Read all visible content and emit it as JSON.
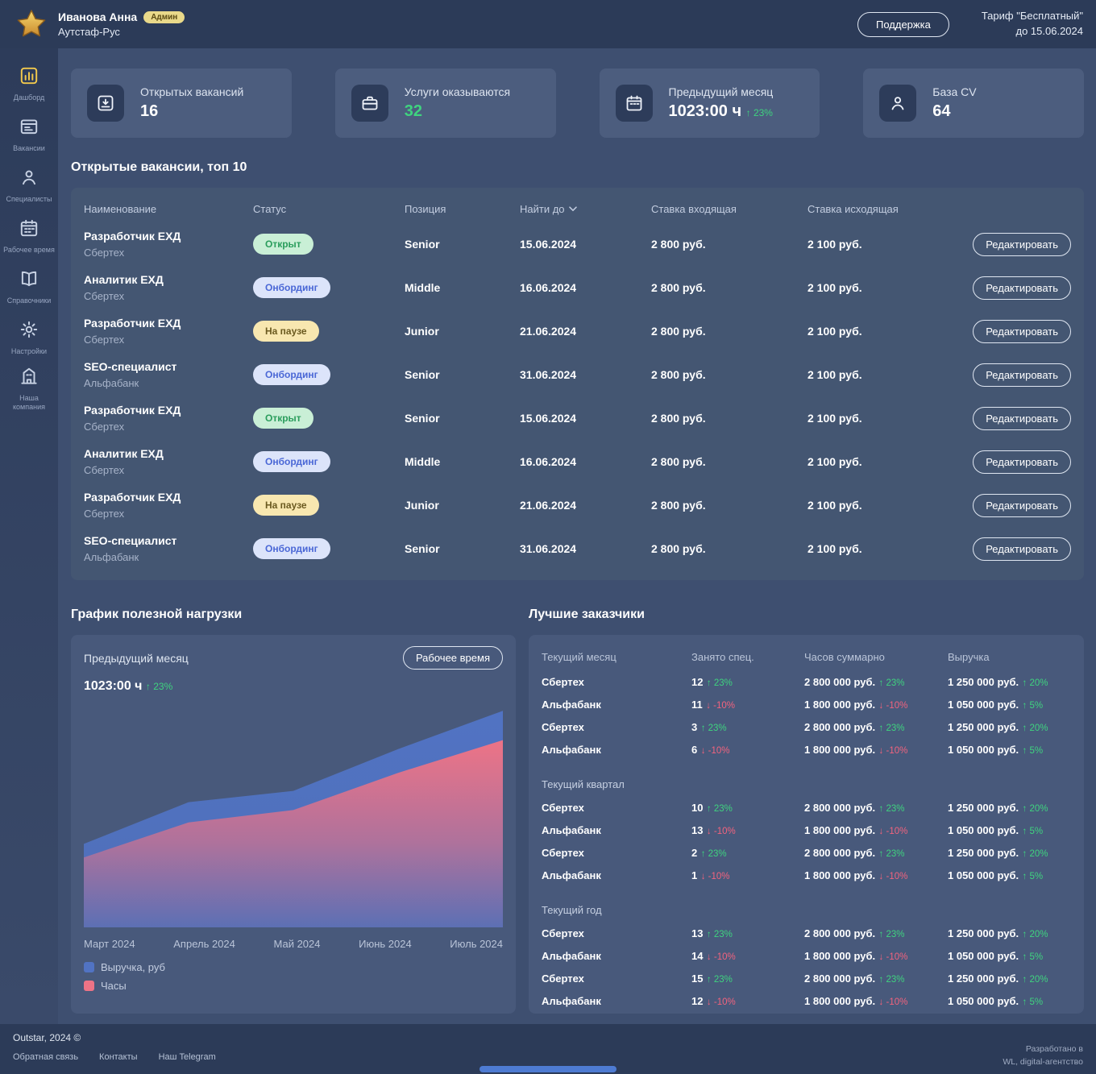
{
  "header": {
    "user_name": "Иванова Анна",
    "user_badge": "Админ",
    "company": "Аутстаф-Рус",
    "support_button": "Поддержка",
    "tariff_line1": "Тариф \"Бесплатный\"",
    "tariff_line2": "до 15.06.2024"
  },
  "sidebar": {
    "items": [
      {
        "id": "dashboard",
        "label": "Дашборд",
        "icon": "dashboard-icon",
        "active": true
      },
      {
        "id": "vacancies",
        "label": "Вакансии",
        "icon": "vacancies-icon",
        "active": false
      },
      {
        "id": "specialists",
        "label": "Специалисты",
        "icon": "specialists-icon",
        "active": false
      },
      {
        "id": "worktime",
        "label": "Рабочее время",
        "icon": "worktime-icon",
        "active": false
      },
      {
        "id": "references",
        "label": "Справочники",
        "icon": "references-icon",
        "active": false
      },
      {
        "id": "settings",
        "label": "Настройки",
        "icon": "settings-icon",
        "active": false
      },
      {
        "id": "company",
        "label": "Наша компания",
        "icon": "company-icon",
        "active": false
      }
    ]
  },
  "stats": [
    {
      "id": "open-vacancies",
      "icon": "inbox-download-icon",
      "label": "Открытых вакансий",
      "value": "16",
      "value_class": "white",
      "delta": ""
    },
    {
      "id": "services",
      "icon": "services-icon",
      "label": "Услуги оказываются",
      "value": "32",
      "value_class": "green",
      "delta": ""
    },
    {
      "id": "prev-month",
      "icon": "calendar-icon",
      "label": "Предыдущий месяц",
      "value": "1023:00 ч",
      "value_class": "white",
      "delta": "↑ 23%"
    },
    {
      "id": "cv-base",
      "icon": "person-icon",
      "label": "База CV",
      "value": "64",
      "value_class": "white",
      "delta": ""
    }
  ],
  "vacancies": {
    "title": "Открытые вакансии, топ 10",
    "columns": {
      "name": "Наименование",
      "status": "Статус",
      "position": "Позиция",
      "deadline": "Найти до",
      "rate_in": "Ставка входящая",
      "rate_out": "Ставка исходящая"
    },
    "edit_label": "Редактировать",
    "rows": [
      {
        "name": "Разработчик ЕХД",
        "company": "Сбертех",
        "status": "Открыт",
        "status_type": "open",
        "position": "Senior",
        "deadline": "15.06.2024",
        "rate_in": "2 800 руб.",
        "rate_out": "2 100 руб."
      },
      {
        "name": "Аналитик ЕХД",
        "company": "Сбертех",
        "status": "Онбординг",
        "status_type": "onboarding",
        "position": "Middle",
        "deadline": "16.06.2024",
        "rate_in": "2 800 руб.",
        "rate_out": "2 100 руб."
      },
      {
        "name": "Разработчик ЕХД",
        "company": "Сбертех",
        "status": "На паузе",
        "status_type": "paused",
        "position": "Junior",
        "deadline": "21.06.2024",
        "rate_in": "2 800 руб.",
        "rate_out": "2 100 руб."
      },
      {
        "name": "SEO-специалист",
        "company": "Альфабанк",
        "status": "Онбординг",
        "status_type": "onboarding",
        "position": "Senior",
        "deadline": "31.06.2024",
        "rate_in": "2 800 руб.",
        "rate_out": "2 100 руб."
      },
      {
        "name": "Разработчик ЕХД",
        "company": "Сбертех",
        "status": "Открыт",
        "status_type": "open",
        "position": "Senior",
        "deadline": "15.06.2024",
        "rate_in": "2 800 руб.",
        "rate_out": "2 100 руб."
      },
      {
        "name": "Аналитик ЕХД",
        "company": "Сбертех",
        "status": "Онбординг",
        "status_type": "onboarding",
        "position": "Middle",
        "deadline": "16.06.2024",
        "rate_in": "2 800 руб.",
        "rate_out": "2 100 руб."
      },
      {
        "name": "Разработчик ЕХД",
        "company": "Сбертех",
        "status": "На паузе",
        "status_type": "paused",
        "position": "Junior",
        "deadline": "21.06.2024",
        "rate_in": "2 800 руб.",
        "rate_out": "2 100 руб."
      },
      {
        "name": "SEO-специалист",
        "company": "Альфабанк",
        "status": "Онбординг",
        "status_type": "onboarding",
        "position": "Senior",
        "deadline": "31.06.2024",
        "rate_in": "2 800 руб.",
        "rate_out": "2 100 руб."
      }
    ]
  },
  "load_chart": {
    "section_title": "График полезной нагрузки",
    "period_label": "Предыдущий месяц",
    "button": "Рабочее время",
    "value": "1023:00 ч",
    "delta": "↑ 23%"
  },
  "chart_data": {
    "type": "area",
    "title": "График полезной нагрузки",
    "x": [
      "Март 2024",
      "Апрель 2024",
      "Май 2024",
      "Июнь 2024",
      "Июль 2024"
    ],
    "series": [
      {
        "name": "Выручка, руб",
        "color": "#5173c3",
        "values": [
          370,
          555,
          605,
          790,
          960
        ]
      },
      {
        "name": "Часы",
        "color": "#ed7386",
        "values": [
          310,
          465,
          520,
          685,
          830
        ]
      }
    ],
    "ylim": [
      0,
      1000
    ],
    "grid": false,
    "stacked_look": true,
    "legend_position": "bottom-left"
  },
  "top_clients": {
    "title": "Лучшие заказчики",
    "columns": [
      "Занято спец.",
      "Часов суммарно",
      "Выручка"
    ],
    "sections": [
      {
        "label": "Текущий месяц",
        "rows": [
          {
            "client": "Сбертех",
            "spec": "12",
            "spec_delta": "↑ 23%",
            "spec_dir": "up",
            "hours": "2 800 000 руб.",
            "hours_delta": "↑ 23%",
            "hours_dir": "up",
            "revenue": "1 250 000 руб.",
            "revenue_delta": "↑ 20%",
            "revenue_dir": "up"
          },
          {
            "client": "Альфабанк",
            "spec": "11",
            "spec_delta": "↓ -10%",
            "spec_dir": "down",
            "hours": "1 800 000 руб.",
            "hours_delta": "↓ -10%",
            "hours_dir": "down",
            "revenue": "1 050 000 руб.",
            "revenue_delta": "↑ 5%",
            "revenue_dir": "up"
          },
          {
            "client": "Сбертех",
            "spec": "3",
            "spec_delta": "↑ 23%",
            "spec_dir": "up",
            "hours": "2 800 000 руб.",
            "hours_delta": "↑ 23%",
            "hours_dir": "up",
            "revenue": "1 250 000 руб.",
            "revenue_delta": "↑ 20%",
            "revenue_dir": "up"
          },
          {
            "client": "Альфабанк",
            "spec": "6",
            "spec_delta": "↓ -10%",
            "spec_dir": "down",
            "hours": "1 800 000 руб.",
            "hours_delta": "↓ -10%",
            "hours_dir": "down",
            "revenue": "1 050 000 руб.",
            "revenue_delta": "↑ 5%",
            "revenue_dir": "up"
          }
        ]
      },
      {
        "label": "Текущий квартал",
        "rows": [
          {
            "client": "Сбертех",
            "spec": "10",
            "spec_delta": "↑ 23%",
            "spec_dir": "up",
            "hours": "2 800 000 руб.",
            "hours_delta": "↑ 23%",
            "hours_dir": "up",
            "revenue": "1 250 000 руб.",
            "revenue_delta": "↑ 20%",
            "revenue_dir": "up"
          },
          {
            "client": "Альфабанк",
            "spec": "13",
            "spec_delta": "↓ -10%",
            "spec_dir": "down",
            "hours": "1 800 000 руб.",
            "hours_delta": "↓ -10%",
            "hours_dir": "down",
            "revenue": "1 050 000 руб.",
            "revenue_delta": "↑ 5%",
            "revenue_dir": "up"
          },
          {
            "client": "Сбертех",
            "spec": "2",
            "spec_delta": "↑ 23%",
            "spec_dir": "up",
            "hours": "2 800 000 руб.",
            "hours_delta": "↑ 23%",
            "hours_dir": "up",
            "revenue": "1 250 000 руб.",
            "revenue_delta": "↑ 20%",
            "revenue_dir": "up"
          },
          {
            "client": "Альфабанк",
            "spec": "1",
            "spec_delta": "↓ -10%",
            "spec_dir": "down",
            "hours": "1 800 000 руб.",
            "hours_delta": "↓ -10%",
            "hours_dir": "down",
            "revenue": "1 050 000 руб.",
            "revenue_delta": "↑ 5%",
            "revenue_dir": "up"
          }
        ]
      },
      {
        "label": "Текущий год",
        "rows": [
          {
            "client": "Сбертех",
            "spec": "13",
            "spec_delta": "↑ 23%",
            "spec_dir": "up",
            "hours": "2 800 000 руб.",
            "hours_delta": "↑ 23%",
            "hours_dir": "up",
            "revenue": "1 250 000 руб.",
            "revenue_delta": "↑ 20%",
            "revenue_dir": "up"
          },
          {
            "client": "Альфабанк",
            "spec": "14",
            "spec_delta": "↓ -10%",
            "spec_dir": "down",
            "hours": "1 800 000 руб.",
            "hours_delta": "↓ -10%",
            "hours_dir": "down",
            "revenue": "1 050 000 руб.",
            "revenue_delta": "↑ 5%",
            "revenue_dir": "up"
          },
          {
            "client": "Сбертех",
            "spec": "15",
            "spec_delta": "↑ 23%",
            "spec_dir": "up",
            "hours": "2 800 000 руб.",
            "hours_delta": "↑ 23%",
            "hours_dir": "up",
            "revenue": "1 250 000 руб.",
            "revenue_delta": "↑ 20%",
            "revenue_dir": "up"
          },
          {
            "client": "Альфабанк",
            "spec": "12",
            "spec_delta": "↓ -10%",
            "spec_dir": "down",
            "hours": "1 800 000 руб.",
            "hours_delta": "↓ -10%",
            "hours_dir": "down",
            "revenue": "1 050 000 руб.",
            "revenue_delta": "↑ 5%",
            "revenue_dir": "up"
          }
        ]
      }
    ]
  },
  "footer": {
    "copyright": "Outstar, 2024 ©",
    "links": [
      "Обратная связь",
      "Контакты",
      "Наш Telegram"
    ],
    "credit_line1": "Разработано в",
    "credit_line2": "WL, digital-агентство"
  }
}
